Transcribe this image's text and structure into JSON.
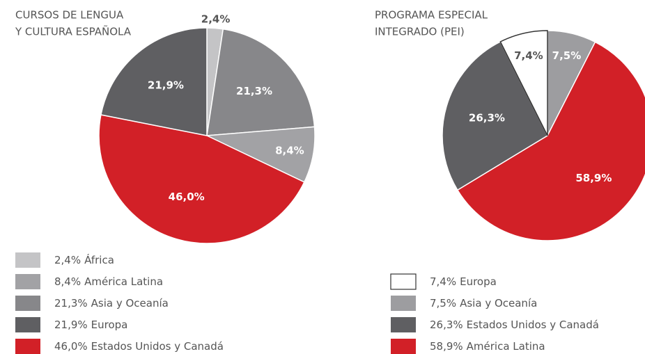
{
  "chart_data": [
    {
      "type": "pie",
      "title": [
        "CURSOS DE LENGUA",
        "Y CULTURA ESPAÑOLA"
      ],
      "categories": [
        "África",
        "Asia y Oceanía",
        "América Latina",
        "Estados Unidos y Canadá",
        "Europa"
      ],
      "values": [
        2.4,
        21.3,
        8.4,
        46.0,
        21.9
      ],
      "value_labels": [
        "2,4%",
        "21,3%",
        "8,4%",
        "46,0%",
        "21,9%"
      ],
      "colors": [
        "#c4c4c6",
        "#87878a",
        "#a2a2a5",
        "#d22027",
        "#5f5f62"
      ]
    },
    {
      "type": "pie",
      "title": [
        "PROGRAMA ESPECIAL",
        "INTEGRADO (PEI)"
      ],
      "categories": [
        "Asia y Oceanía",
        "América Latina",
        "Estados Unidos y Canadá",
        "Europa"
      ],
      "values": [
        7.5,
        58.9,
        26.3,
        7.4
      ],
      "value_labels": [
        "7,5%",
        "58,9%",
        "26,3%",
        "7,4%"
      ],
      "colors": [
        "#9d9da0",
        "#d22027",
        "#5f5f62",
        "#ffffff"
      ]
    }
  ]
}
